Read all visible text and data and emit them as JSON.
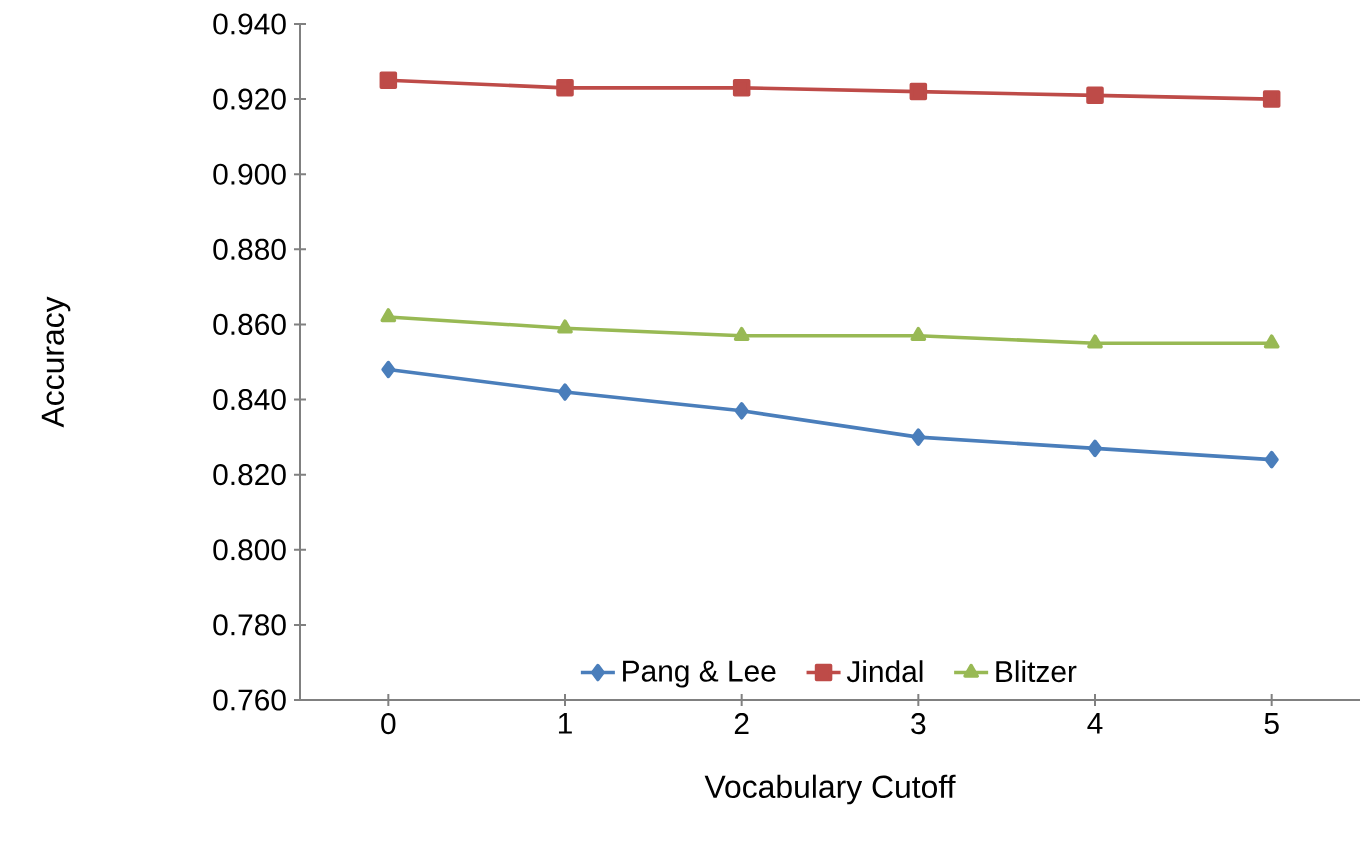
{
  "chart_data": {
    "type": "line",
    "xlabel": "Vocabulary Cutoff",
    "ylabel": "Accuracy",
    "categories": [
      "0",
      "1",
      "2",
      "3",
      "4",
      "5"
    ],
    "series": [
      {
        "name": "Pang & Lee",
        "color": "#4a7ebb",
        "marker": "diamond",
        "values": [
          0.848,
          0.842,
          0.837,
          0.83,
          0.827,
          0.824
        ]
      },
      {
        "name": "Jindal",
        "color": "#be4b48",
        "marker": "square",
        "values": [
          0.925,
          0.923,
          0.923,
          0.922,
          0.921,
          0.92
        ]
      },
      {
        "name": "Blitzer",
        "color": "#98b954",
        "marker": "triangle",
        "values": [
          0.862,
          0.859,
          0.857,
          0.857,
          0.855,
          0.855
        ]
      }
    ],
    "ylim": [
      0.76,
      0.94
    ],
    "yticks": [
      {
        "value": 0.76,
        "label": "0.760"
      },
      {
        "value": 0.78,
        "label": "0.780"
      },
      {
        "value": 0.8,
        "label": "0.800"
      },
      {
        "value": 0.82,
        "label": "0.820"
      },
      {
        "value": 0.84,
        "label": "0.840"
      },
      {
        "value": 0.86,
        "label": "0.860"
      },
      {
        "value": 0.88,
        "label": "0.880"
      },
      {
        "value": 0.9,
        "label": "0.900"
      },
      {
        "value": 0.92,
        "label": "0.920"
      },
      {
        "value": 0.94,
        "label": "0.940"
      }
    ],
    "legend": "bottom",
    "grid": false,
    "line_style": "solid"
  }
}
